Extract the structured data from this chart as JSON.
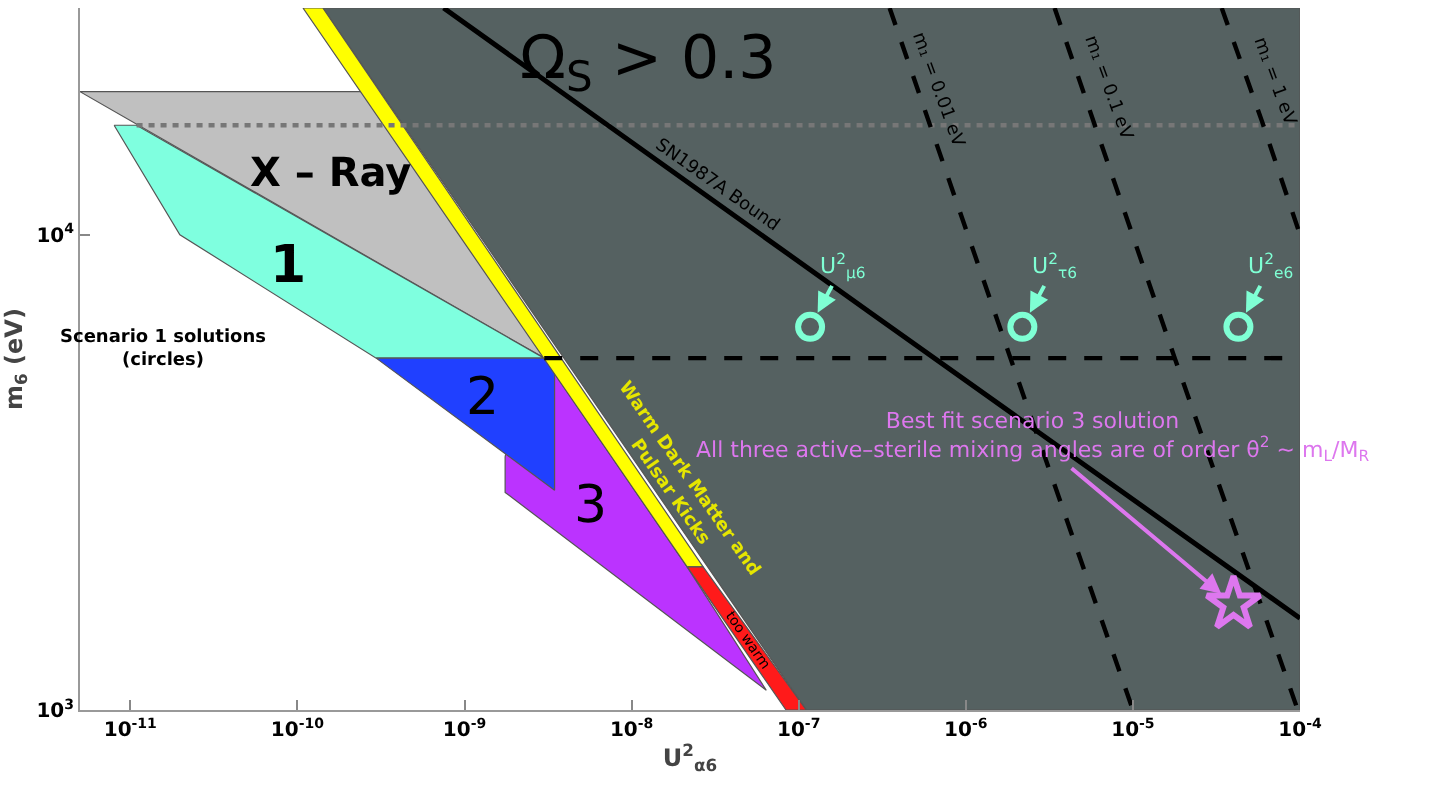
{
  "chart_data": {
    "type": "area",
    "xlabel": "U$^{2}$$_{α6}$",
    "ylabel": "m$_{6}$ (eV)",
    "log": "xy",
    "grid": false,
    "xlim": [
      5e-12,
      0.0001
    ],
    "ylim": [
      1000,
      30000
    ],
    "xticks": [
      {
        "value": 1e-11,
        "label": "10$^{-11}$"
      },
      {
        "value": 1e-10,
        "label": "10$^{-10}$"
      },
      {
        "value": 1e-09,
        "label": "10$^{-9}$"
      },
      {
        "value": 1e-08,
        "label": "10$^{-8}$"
      },
      {
        "value": 1e-07,
        "label": "10$^{-7}$"
      },
      {
        "value": 1e-06,
        "label": "10$^{-6}$"
      },
      {
        "value": 1e-05,
        "label": "10$^{-5}$"
      },
      {
        "value": 0.0001,
        "label": "10$^{-4}$"
      }
    ],
    "yticks": [
      {
        "value": 1000,
        "label": "10$^{3}$"
      },
      {
        "value": 10000,
        "label": "10$^{4}$"
      }
    ],
    "series": [
      {
        "color": "#556161",
        "x": [
          1.42e-10,
          0.0001,
          0.0001,
          1.11e-07
        ],
        "values": [
          30000,
          30000,
          1000,
          1000
        ]
      },
      {
        "color": "#c0c0c0",
        "x": [
          5e-12,
          2.72e-10,
          3e-09
        ],
        "values": [
          20000,
          20000,
          5500
        ]
      },
      {
        "color": "#7fffdf",
        "x": [
          8e-12,
          1.09e-11,
          3e-09,
          2.96e-10,
          1.98e-11
        ],
        "values": [
          17000,
          17000,
          5500,
          5500,
          10000
        ]
      },
      {
        "color": "#bb33ff",
        "x": [
          1.75e-09,
          3e-09,
          2.15e-08,
          6.4e-08,
          1.75e-09
        ],
        "values": [
          3420,
          5500,
          2000,
          1100,
          2870
        ]
      },
      {
        "color": "#2040ff",
        "x": [
          2.96e-10,
          3.46e-09,
          3.46e-09
        ],
        "values": [
          5500,
          5500,
          2900
        ]
      },
      {
        "color": "#ffff00",
        "x": [
          1.08e-10,
          1.42e-10,
          2.68e-08,
          2.15e-08
        ],
        "values": [
          30000,
          30000,
          2000,
          2000
        ]
      },
      {
        "color": "#ff1a1a",
        "x": [
          2.15e-08,
          2.68e-08,
          1.11e-07,
          8.4e-08
        ],
        "values": [
          2000,
          2000,
          1000,
          1000
        ]
      },
      {
        "type": "line",
        "color": "#777777",
        "line_style": "dotted",
        "x": [
          1.09e-11,
          0.0001
        ],
        "values": [
          17000,
          17000
        ]
      },
      {
        "type": "line",
        "color": "#000000",
        "line_style": "dashed",
        "x": [
          3e-09,
          0.0001
        ],
        "values": [
          5500,
          5500
        ]
      },
      {
        "type": "line",
        "color": "#000000",
        "line_style": "solid",
        "x": [
          7.5e-10,
          2.74e-07,
          0.0001
        ],
        "values": [
          30000,
          6820,
          1560
        ]
      },
      {
        "type": "line",
        "color": "#000000",
        "line_style": "dashed",
        "x": [
          3.5e-07,
          1.85e-06,
          1e-05
        ],
        "values": [
          30000,
          5500,
          1000
        ]
      },
      {
        "type": "line",
        "color": "#000000",
        "line_style": "dashed",
        "x": [
          3.4e-06,
          1.78e-05,
          9.7e-05
        ],
        "values": [
          30000,
          5500,
          1000
        ]
      },
      {
        "type": "line",
        "color": "#000000",
        "line_style": "dashed",
        "x": [
          3.4e-05,
          5.93e-05,
          0.0001
        ],
        "values": [
          30000,
          17300,
          10000
        ]
      },
      {
        "type": "scatter",
        "color": "#7fffd4",
        "marker": "circle",
        "x": [
          1.17e-07,
          2.18e-06,
          4.28e-05
        ],
        "values": [
          6400,
          6400,
          6400
        ],
        "value_labels": [
          "U$^{2}$$_{μ6}$",
          "U$^{2}$$_{τ6}$",
          "U$^{2}$$_{e6}$"
        ]
      },
      {
        "type": "scatter",
        "color": "#dd77ee",
        "marker": "star",
        "x": [
          4e-05
        ],
        "values": [
          1670
        ],
        "value_labels": [
          "Best fit scenario 3 solution\nAll three active–sterile mixing angles are of order θ$^{2}$ ~ m$_{L}$/M$_{R}$"
        ]
      }
    ],
    "annotations": [
      "Ω$_{S}$ > 0.3",
      "X – Ray",
      "1",
      "2",
      "3",
      "Scenario 1 solutions\n(circles)",
      "Warm Dark Matter and\nPulsar Kicks",
      "too warm",
      "SN1987A Bound",
      "m₁ = 0.01 eV",
      "m₁ = 0.1 eV",
      "m₁ = 1 eV"
    ]
  }
}
